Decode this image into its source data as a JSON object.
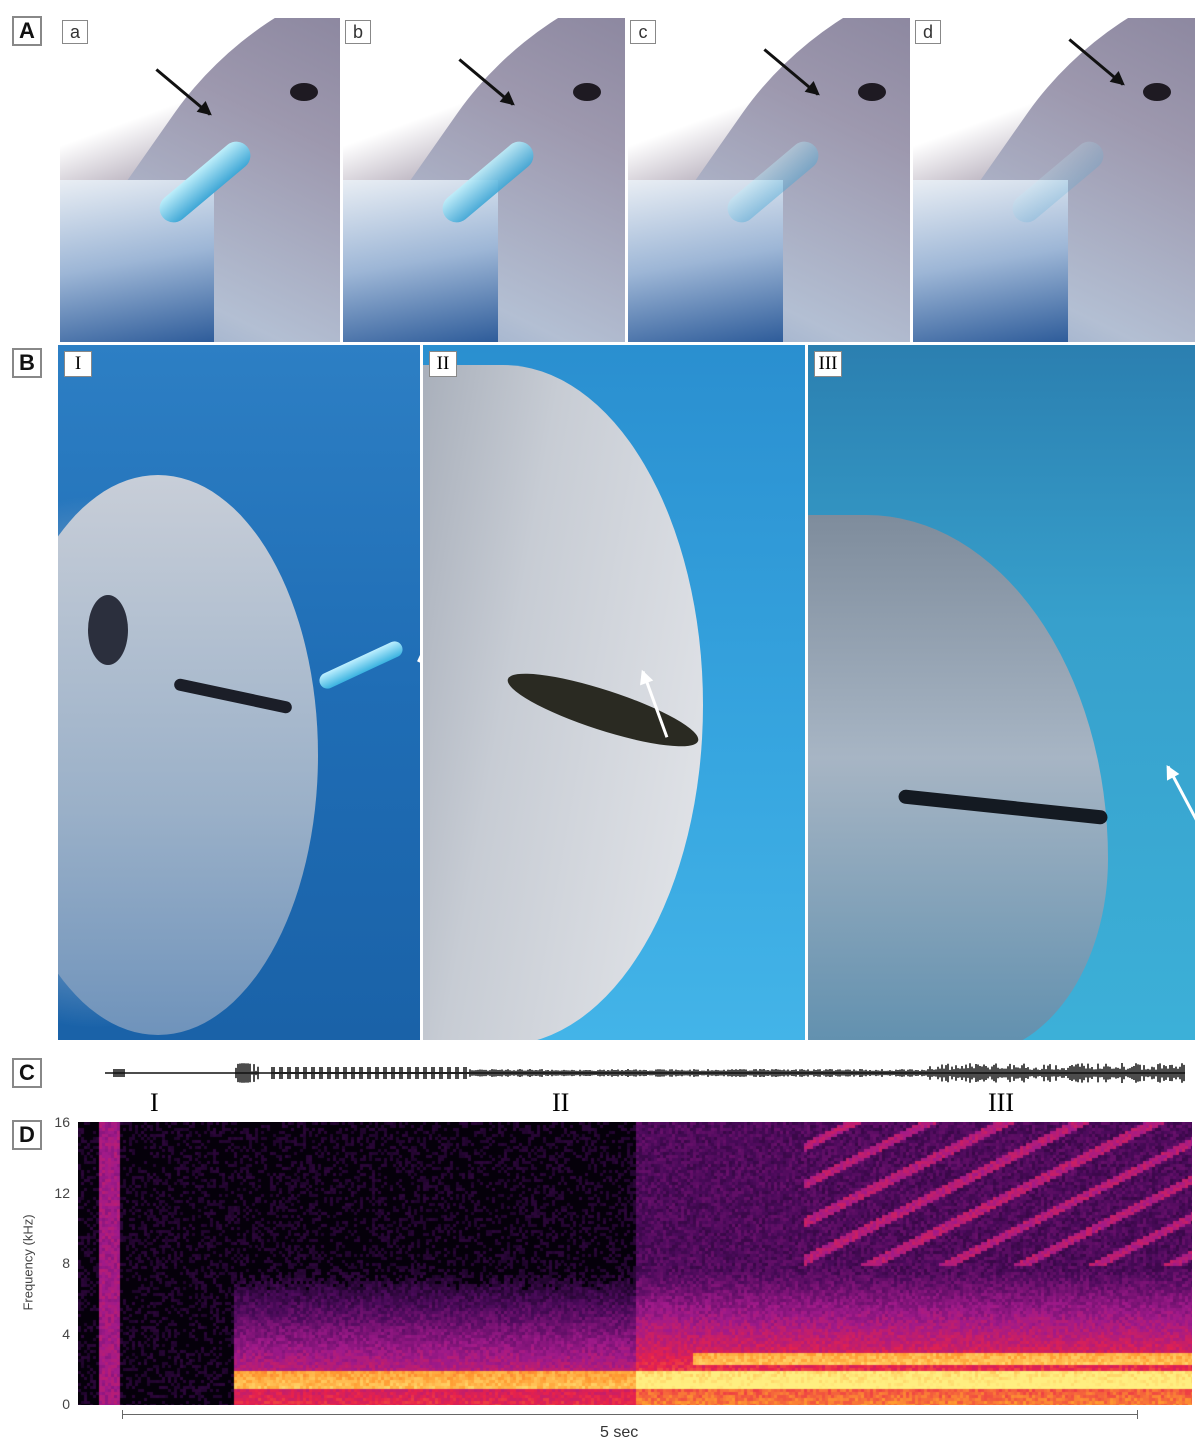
{
  "panels": {
    "A": {
      "label": "A",
      "subpanels": [
        "a",
        "b",
        "c",
        "d"
      ]
    },
    "B": {
      "label": "B",
      "subpanels": [
        "I",
        "II",
        "III"
      ]
    },
    "C": {
      "label": "C",
      "segments": [
        "I",
        "II",
        "III"
      ]
    },
    "D": {
      "label": "D"
    }
  },
  "chart_data": {
    "type": "heatmap",
    "ylabel": "Frequency (kHz)",
    "yticks": [
      "16",
      "12",
      "8",
      "4",
      "0"
    ],
    "ylim": [
      0,
      16
    ],
    "scale_bar": "5 sec",
    "colormap": [
      "#000000",
      "#4a0a5a",
      "#a01a8a",
      "#e8224a",
      "#ff9a30",
      "#ffee80"
    ]
  }
}
